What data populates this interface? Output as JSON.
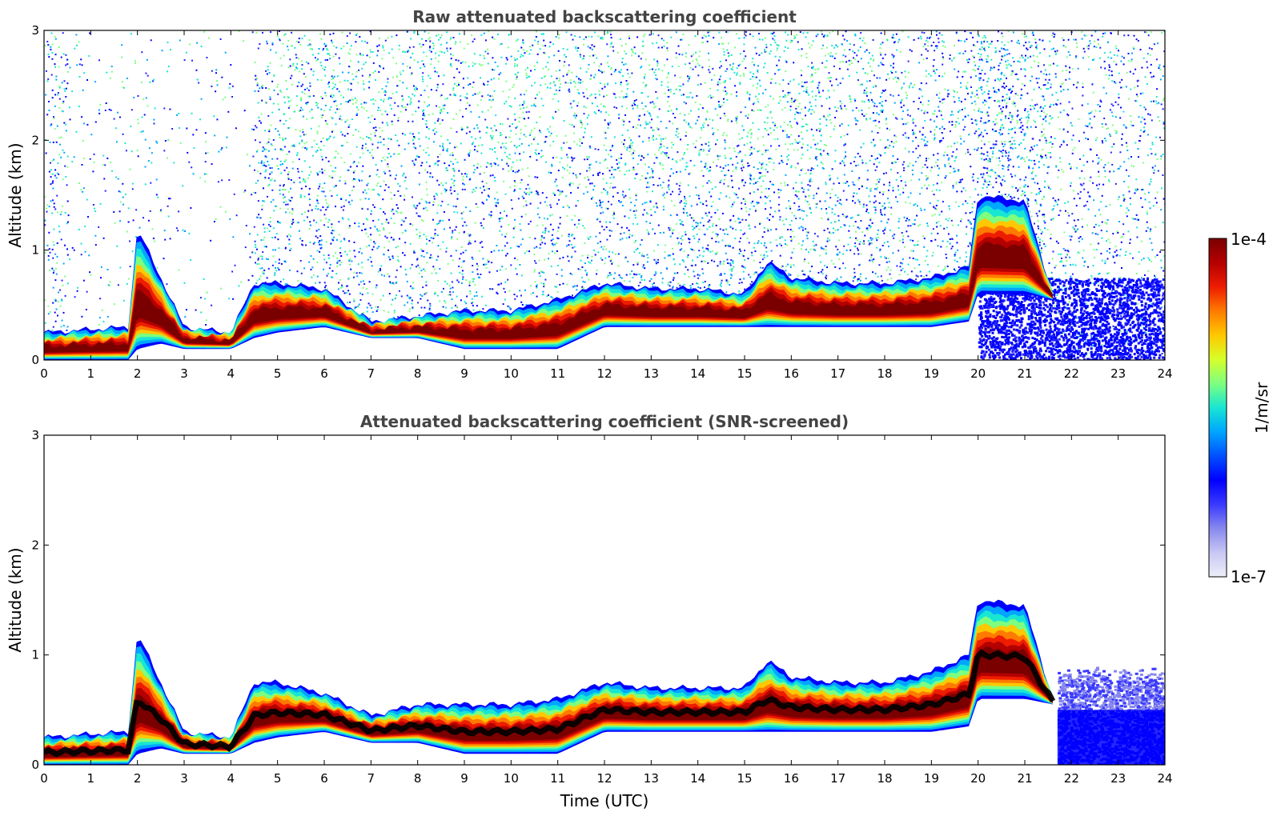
{
  "chart_data": [
    {
      "type": "heatmap",
      "title": "Raw attenuated backscattering coefficient",
      "xlabel": "",
      "ylabel": "Altitude (km)",
      "xlim": [
        0,
        24
      ],
      "ylim": [
        0,
        3
      ],
      "x_ticks": [
        "0",
        "1",
        "2",
        "3",
        "4",
        "5",
        "6",
        "7",
        "8",
        "9",
        "10",
        "11",
        "12",
        "13",
        "14",
        "15",
        "16",
        "17",
        "18",
        "19",
        "20",
        "21",
        "22",
        "23",
        "24"
      ],
      "y_ticks": [
        "0",
        "1",
        "2",
        "3"
      ],
      "layer_profile": {
        "time_utc": [
          0,
          1,
          1.8,
          2,
          2.5,
          3,
          4,
          4.5,
          5,
          6,
          7,
          8,
          9,
          10,
          11,
          12,
          13,
          14,
          15,
          15.5,
          16,
          17,
          18,
          19,
          19.8,
          20,
          21,
          21.6
        ],
        "top_km": [
          0.25,
          0.28,
          0.3,
          1.2,
          0.75,
          0.3,
          0.25,
          0.7,
          0.7,
          0.65,
          0.35,
          0.4,
          0.45,
          0.45,
          0.55,
          0.7,
          0.65,
          0.65,
          0.6,
          0.9,
          0.75,
          0.7,
          0.7,
          0.75,
          0.85,
          1.5,
          1.45,
          0.6
        ],
        "base_km": [
          0.0,
          0.0,
          0.0,
          0.1,
          0.15,
          0.1,
          0.1,
          0.2,
          0.25,
          0.3,
          0.2,
          0.2,
          0.1,
          0.1,
          0.1,
          0.3,
          0.3,
          0.3,
          0.3,
          0.3,
          0.3,
          0.3,
          0.3,
          0.3,
          0.35,
          0.6,
          0.6,
          0.55
        ]
      },
      "noise": "scattered noise above layers up to 3 km"
    },
    {
      "type": "heatmap",
      "title": "Attenuated backscattering coefficient (SNR-screened)",
      "xlabel": "Time (UTC)",
      "ylabel": "Altitude (km)",
      "xlim": [
        0,
        24
      ],
      "ylim": [
        0,
        3
      ],
      "x_ticks": [
        "0",
        "1",
        "2",
        "3",
        "4",
        "5",
        "6",
        "7",
        "8",
        "9",
        "10",
        "11",
        "12",
        "13",
        "14",
        "15",
        "16",
        "17",
        "18",
        "19",
        "20",
        "21",
        "22",
        "23",
        "24"
      ],
      "y_ticks": [
        "0",
        "1",
        "2",
        "3"
      ],
      "layer_profile": {
        "time_utc": [
          0,
          1,
          1.8,
          2,
          2.5,
          3,
          4,
          4.5,
          5,
          6,
          7,
          8,
          9,
          10,
          11,
          12,
          13,
          14,
          15,
          15.5,
          16,
          17,
          18,
          19,
          19.8,
          20,
          21,
          21.6
        ],
        "top_km": [
          0.25,
          0.28,
          0.3,
          1.2,
          0.75,
          0.3,
          0.25,
          0.75,
          0.75,
          0.65,
          0.45,
          0.55,
          0.55,
          0.55,
          0.6,
          0.75,
          0.7,
          0.7,
          0.7,
          0.95,
          0.8,
          0.75,
          0.75,
          0.85,
          1.0,
          1.5,
          1.45,
          0.6
        ],
        "base_km": [
          0.0,
          0.0,
          0.0,
          0.1,
          0.15,
          0.1,
          0.1,
          0.2,
          0.25,
          0.3,
          0.2,
          0.2,
          0.1,
          0.1,
          0.1,
          0.3,
          0.3,
          0.3,
          0.3,
          0.3,
          0.3,
          0.3,
          0.3,
          0.3,
          0.35,
          0.6,
          0.6,
          0.55
        ]
      },
      "low_signal_region": {
        "time_utc": [
          21.7,
          24
        ],
        "top_km": 0.9
      }
    }
  ],
  "colorbar": {
    "label": "1/m/sr",
    "max_label": "1e-4",
    "min_label": "1e-7",
    "colors": [
      "#7a0000",
      "#b40000",
      "#ee1c00",
      "#ff7a00",
      "#ffc800",
      "#d6ff2a",
      "#7dff80",
      "#18e6d2",
      "#00a6ff",
      "#0050ff",
      "#0000ff",
      "#3a3aff",
      "#8888ee",
      "#c8c8f4",
      "#eeeefa"
    ]
  }
}
